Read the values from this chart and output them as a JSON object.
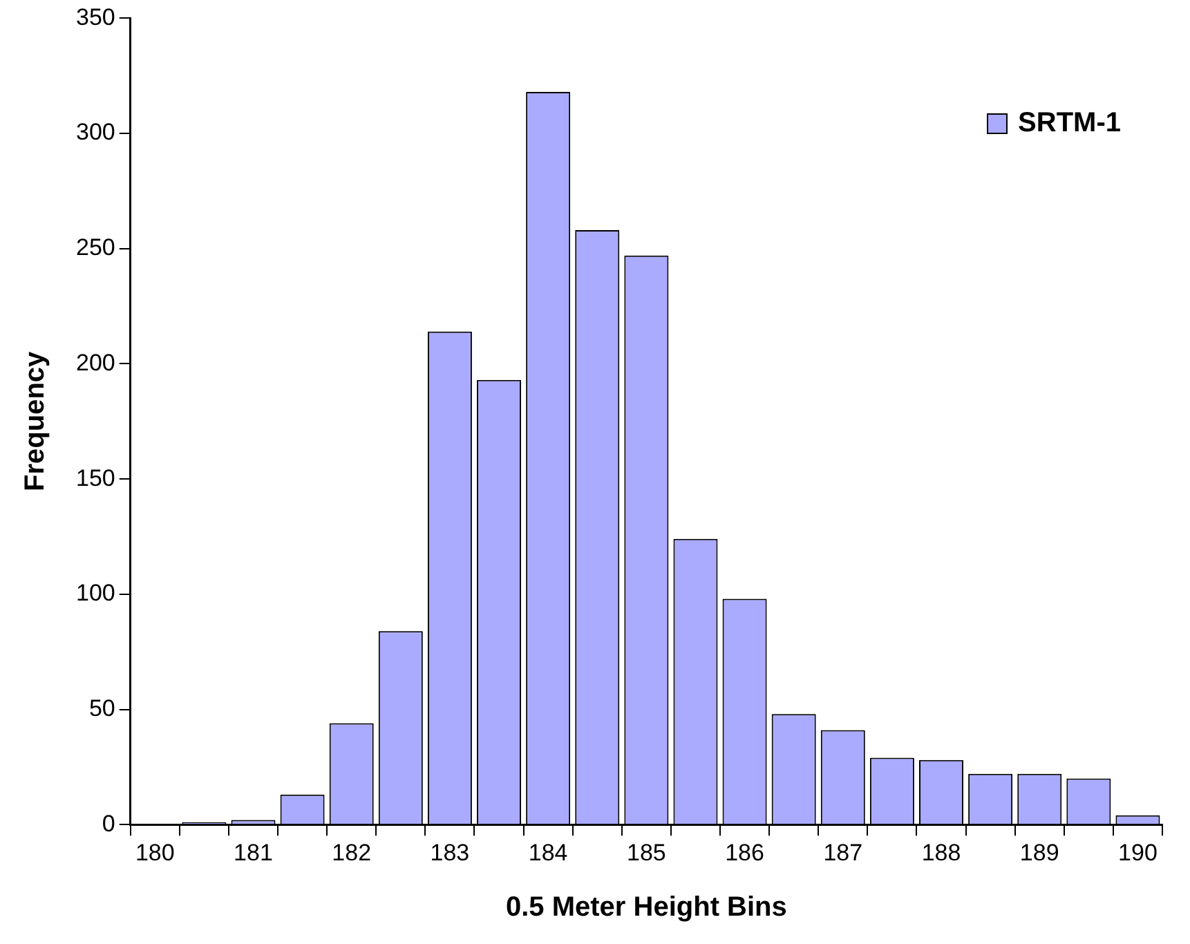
{
  "chart_data": {
    "type": "bar",
    "xlabel": "0.5 Meter Height Bins",
    "ylabel": "Frequency",
    "categories": [
      "180",
      null,
      "181",
      null,
      "182",
      null,
      "183",
      null,
      "184",
      null,
      "185",
      null,
      "186",
      null,
      "187",
      null,
      "188",
      null,
      "189",
      null,
      "190"
    ],
    "series": [
      {
        "name": "SRTM-1",
        "color": "#aaaaff",
        "values": [
          0,
          1,
          2,
          13,
          44,
          84,
          214,
          193,
          318,
          258,
          247,
          124,
          98,
          48,
          41,
          29,
          28,
          22,
          22,
          20,
          4
        ]
      }
    ],
    "ylim": [
      0,
      350
    ],
    "yticks": [
      0,
      50,
      100,
      150,
      200,
      250,
      300,
      350
    ],
    "grid": false,
    "legend": "top right"
  }
}
